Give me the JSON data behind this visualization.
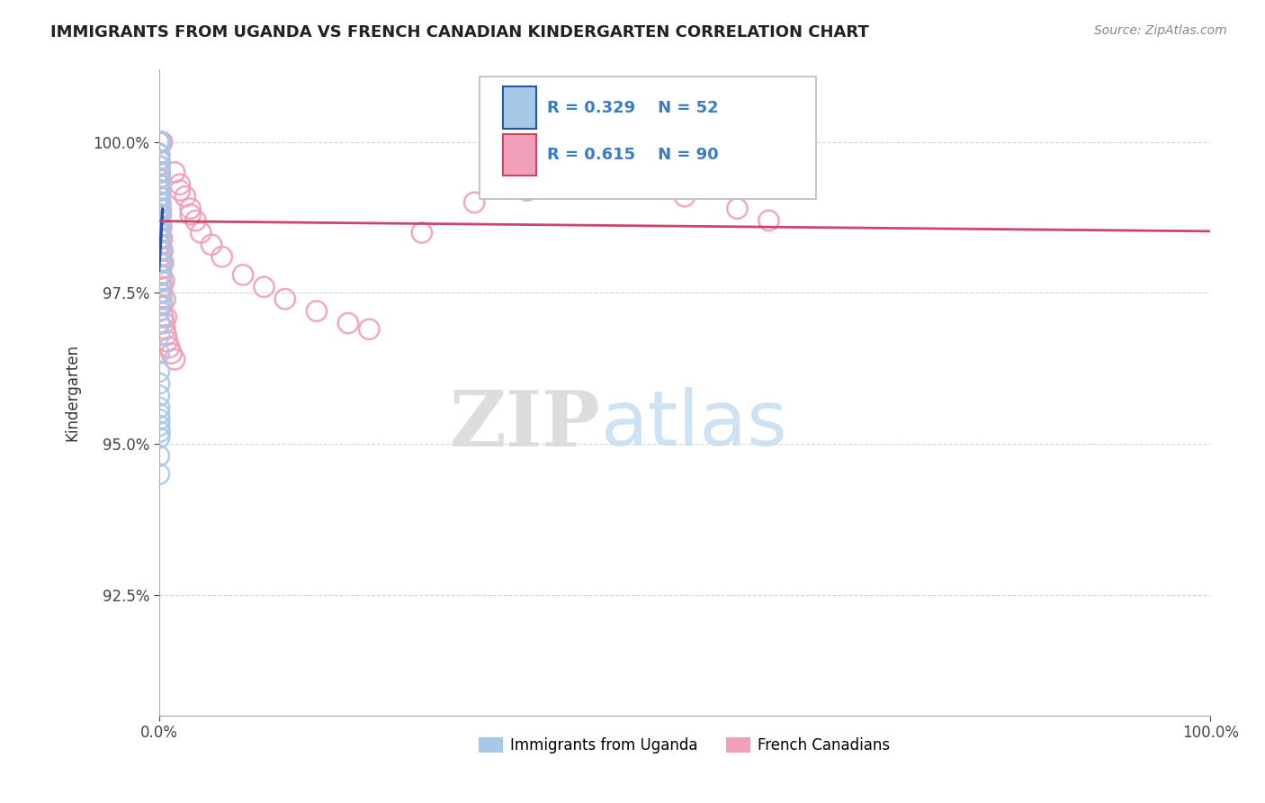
{
  "title": "IMMIGRANTS FROM UGANDA VS FRENCH CANADIAN KINDERGARTEN CORRELATION CHART",
  "source": "Source: ZipAtlas.com",
  "ylabel": "Kindergarten",
  "xlim": [
    0.0,
    100.0
  ],
  "ylim": [
    90.5,
    101.2
  ],
  "yticks": [
    92.5,
    95.0,
    97.5,
    100.0
  ],
  "xticks": [
    0.0,
    100.0
  ],
  "xticklabels": [
    "0.0%",
    "100.0%"
  ],
  "yticklabels": [
    "92.5%",
    "95.0%",
    "97.5%",
    "100.0%"
  ],
  "legend_r1": "0.329",
  "legend_n1": "52",
  "legend_r2": "0.615",
  "legend_n2": "90",
  "series1_label": "Immigrants from Uganda",
  "series2_label": "French Canadians",
  "series1_color": "#a8c8e8",
  "series2_color": "#f0a0b8",
  "trendline1_color": "#2255aa",
  "trendline2_color": "#cc4466",
  "background_color": "#ffffff",
  "watermark_zip": "ZIP",
  "watermark_atlas": "atlas",
  "blue_points_x": [
    0.02,
    0.03,
    0.04,
    0.05,
    0.06,
    0.07,
    0.08,
    0.09,
    0.1,
    0.02,
    0.03,
    0.04,
    0.05,
    0.06,
    0.07,
    0.08,
    0.02,
    0.03,
    0.04,
    0.05,
    0.06,
    0.07,
    0.02,
    0.03,
    0.04,
    0.05,
    0.06,
    0.02,
    0.03,
    0.04,
    0.05,
    0.1,
    0.12,
    0.15,
    0.18,
    0.2,
    0.25,
    0.3,
    0.02,
    0.03,
    0.04,
    0.02,
    0.03,
    0.04,
    0.02,
    0.03,
    0.05,
    0.07,
    0.02,
    0.04,
    0.06,
    0.08
  ],
  "blue_points_y": [
    100.0,
    100.0,
    100.0,
    100.0,
    100.0,
    100.0,
    100.0,
    100.0,
    100.0,
    99.8,
    99.8,
    99.8,
    99.7,
    99.6,
    99.5,
    99.4,
    99.2,
    99.1,
    99.0,
    98.9,
    98.8,
    98.7,
    98.5,
    98.4,
    98.2,
    98.0,
    97.8,
    97.5,
    97.3,
    97.0,
    96.8,
    99.3,
    99.0,
    98.6,
    98.2,
    98.0,
    97.7,
    97.4,
    96.5,
    96.2,
    96.0,
    95.5,
    95.3,
    95.1,
    94.8,
    94.5,
    97.2,
    97.0,
    95.8,
    95.6,
    95.4,
    95.2
  ],
  "pink_points_x": [
    0.02,
    0.03,
    0.04,
    0.05,
    0.06,
    0.07,
    0.08,
    0.09,
    0.1,
    0.12,
    0.15,
    0.18,
    0.2,
    0.25,
    0.3,
    0.02,
    0.03,
    0.04,
    0.05,
    0.06,
    0.07,
    0.08,
    0.09,
    0.1,
    0.12,
    0.15,
    0.18,
    0.2,
    0.25,
    0.3,
    0.35,
    0.4,
    0.5,
    0.6,
    0.7,
    0.02,
    0.03,
    0.04,
    0.05,
    0.06,
    0.07,
    0.08,
    0.09,
    0.1,
    0.12,
    0.15,
    0.18,
    0.2,
    0.25,
    0.3,
    1.5,
    2.0,
    2.5,
    3.0,
    3.5,
    4.0,
    5.0,
    6.0,
    8.0,
    10.0,
    12.0,
    15.0,
    18.0,
    20.0,
    25.0,
    30.0,
    35.0,
    40.0,
    45.0,
    50.0,
    55.0,
    58.0,
    0.08,
    0.1,
    0.12,
    0.15,
    0.18,
    0.2,
    0.25,
    0.3,
    0.4,
    0.5,
    0.6,
    0.7,
    0.8,
    1.0,
    1.2,
    1.5,
    2.0,
    3.0
  ],
  "pink_points_y": [
    100.0,
    100.0,
    100.0,
    100.0,
    100.0,
    100.0,
    100.0,
    100.0,
    100.0,
    100.0,
    100.0,
    100.0,
    100.0,
    100.0,
    100.0,
    99.8,
    99.8,
    99.7,
    99.7,
    99.6,
    99.5,
    99.5,
    99.4,
    99.3,
    99.2,
    99.0,
    98.9,
    98.8,
    98.6,
    98.4,
    98.2,
    98.0,
    97.7,
    97.4,
    97.1,
    99.6,
    99.5,
    99.4,
    99.3,
    99.2,
    99.1,
    99.0,
    98.9,
    98.8,
    98.6,
    98.4,
    98.2,
    98.0,
    97.8,
    97.6,
    99.5,
    99.3,
    99.1,
    98.9,
    98.7,
    98.5,
    98.3,
    98.1,
    97.8,
    97.6,
    97.4,
    97.2,
    97.0,
    96.9,
    98.5,
    99.0,
    99.2,
    99.4,
    99.3,
    99.1,
    98.9,
    98.7,
    98.7,
    98.5,
    98.3,
    98.1,
    97.9,
    97.7,
    97.5,
    97.3,
    97.1,
    97.0,
    96.9,
    96.8,
    96.7,
    96.6,
    96.5,
    96.4,
    99.2,
    98.8
  ]
}
